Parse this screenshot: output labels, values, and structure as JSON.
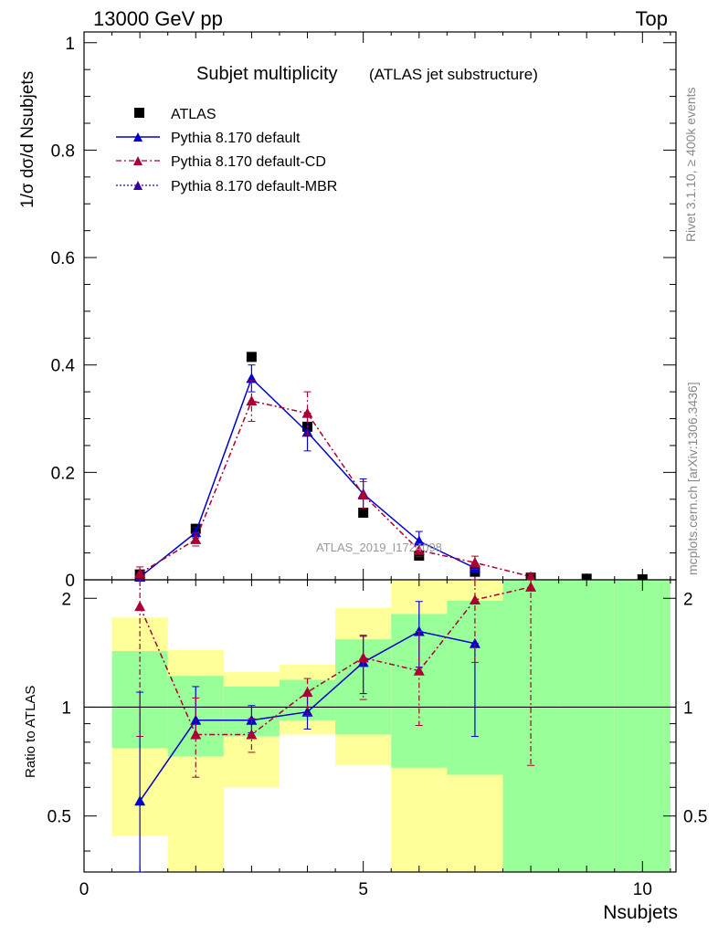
{
  "header": {
    "left": "13000 GeV pp",
    "right": "Top"
  },
  "side_labels": {
    "rivet": "Rivet 3.1.10, ≥ 400k events",
    "mcplots": "mcplots.cern.ch [arXiv:1306.3436]"
  },
  "watermark": "ATLAS_2019_I1724098",
  "chart_data": {
    "type": "line",
    "title": "Subjet multiplicity",
    "subtitle": "(ATLAS jet substructure)",
    "xlabel": "Nsubjets",
    "ylabel": "1/σ dσ/d Nsubjets",
    "xlim": [
      0,
      10.6
    ],
    "ylim": [
      0,
      1.02
    ],
    "x_ticks": [
      0,
      5,
      10
    ],
    "y_ticks": [
      0,
      0.2,
      0.4,
      0.6,
      0.8,
      1
    ],
    "legend_position": "top-left",
    "legend": [
      "ATLAS",
      "Pythia 8.170 default",
      "Pythia 8.170 default-CD",
      "Pythia 8.170 default-MBR"
    ],
    "series": [
      {
        "name": "ATLAS",
        "style": "markers",
        "color": "#000000",
        "x": [
          1,
          2,
          3,
          4,
          5,
          6,
          7,
          8,
          9,
          10
        ],
        "y": [
          0.01,
          0.095,
          0.415,
          0.285,
          0.125,
          0.045,
          0.015,
          0.004,
          0.002,
          0.001
        ]
      },
      {
        "name": "Pythia 8.170 default",
        "style": "solid",
        "color": "#0000cc",
        "x": [
          1,
          2,
          3,
          4,
          5,
          6,
          7
        ],
        "y": [
          0.005,
          0.088,
          0.375,
          0.275,
          0.16,
          0.072,
          0.022
        ],
        "err": [
          0.005,
          0.01,
          0.025,
          0.035,
          0.028,
          0.018,
          0.008
        ]
      },
      {
        "name": "Pythia 8.170 default-CD",
        "style": "dashdot",
        "color": "#aa0033",
        "x": [
          1,
          2,
          3,
          4,
          5,
          6,
          7,
          8
        ],
        "y": [
          0.012,
          0.075,
          0.333,
          0.31,
          0.158,
          0.055,
          0.032,
          0.006
        ],
        "err": [
          0.012,
          0.012,
          0.038,
          0.04,
          0.025,
          0.012,
          0.012,
          0.005
        ]
      }
    ],
    "ratio": {
      "ylabel": "Ratio to ATLAS",
      "ylim": [
        0.35,
        2.25
      ],
      "y_ticks": [
        0.5,
        1,
        2
      ],
      "bands": {
        "x_edges": [
          0.5,
          1.5,
          2.5,
          3.5,
          4.5,
          5.5,
          6.5,
          7.5,
          8.5,
          9.5,
          10.5
        ],
        "green_low": [
          0.77,
          0.73,
          0.83,
          0.92,
          0.84,
          0.68,
          0.65,
          0.35,
          0.35,
          0.35
        ],
        "green_high": [
          1.43,
          1.22,
          1.14,
          1.19,
          1.54,
          1.81,
          1.97,
          2.25,
          2.25,
          2.25
        ],
        "yellow_low": [
          0.44,
          0.35,
          0.6,
          0.84,
          0.69,
          0.35,
          0.35,
          0.35,
          0.35,
          0.35
        ],
        "yellow_high": [
          1.77,
          1.44,
          1.25,
          1.31,
          1.88,
          2.25,
          2.25,
          2.25,
          2.25,
          2.25
        ]
      },
      "series": [
        {
          "name": "Pythia 8.170 default",
          "color": "#0000cc",
          "style": "solid",
          "x": [
            1,
            2,
            3,
            4,
            5,
            6,
            7
          ],
          "y": [
            0.55,
            0.92,
            0.92,
            0.97,
            1.33,
            1.62,
            1.5
          ],
          "err_low": [
            0.25,
            0.1,
            0.07,
            0.1,
            0.24,
            0.33,
            0.67
          ],
          "err_high": [
            0.55,
            0.22,
            0.09,
            0.12,
            0.25,
            0.34,
            0.0
          ]
        },
        {
          "name": "Pythia 8.170 default-CD",
          "color": "#aa0033",
          "style": "dashdot",
          "x": [
            1,
            2,
            3,
            4,
            5,
            6,
            7,
            8
          ],
          "y": [
            1.9,
            0.84,
            0.84,
            1.1,
            1.37,
            1.26,
            1.98,
            2.15
          ],
          "err_low": [
            1.07,
            0.2,
            0.09,
            0.15,
            0.32,
            0.37,
            0.65,
            1.46
          ],
          "err_high": [
            0.35,
            0.22,
            0.09,
            0.1,
            0.2,
            0.36,
            0.27,
            0.1
          ]
        }
      ]
    }
  }
}
